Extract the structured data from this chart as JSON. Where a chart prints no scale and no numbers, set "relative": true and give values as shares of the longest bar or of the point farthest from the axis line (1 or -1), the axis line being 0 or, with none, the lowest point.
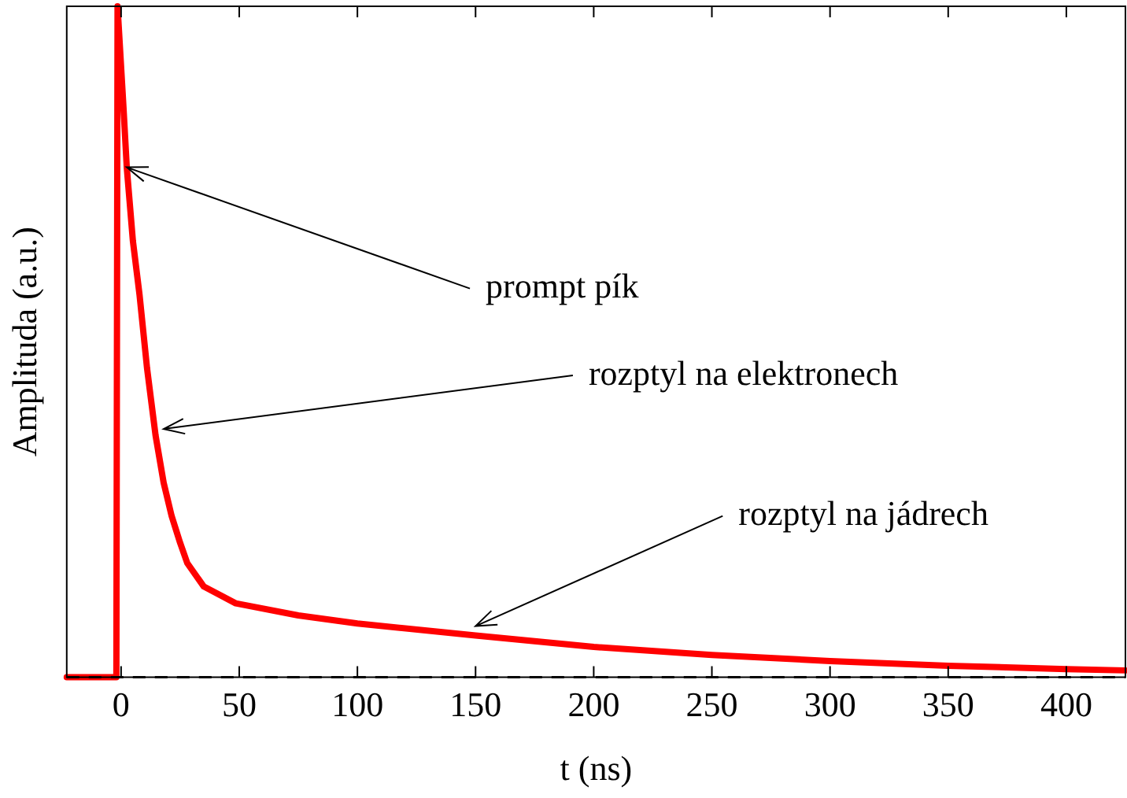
{
  "chart_data": {
    "type": "line",
    "xlabel": "t (ns)",
    "ylabel": "Amplituda (a.u.)",
    "relative": true,
    "x": [
      -23,
      -2,
      -1.5,
      1,
      2.4,
      5,
      7.8,
      11,
      14.6,
      18,
      21.4,
      25,
      28,
      35,
      48.5,
      75,
      100,
      150,
      200,
      250,
      300,
      350,
      400,
      425
    ],
    "series": [
      {
        "color": "#ff0000",
        "values": [
          0,
          0,
          1,
          0.85,
          0.76,
          0.65,
          0.57,
          0.46,
          0.36,
          0.29,
          0.24,
          0.2,
          0.17,
          0.135,
          0.11,
          0.092,
          0.08,
          0.062,
          0.045,
          0.033,
          0.024,
          0.017,
          0.012,
          0.01
        ]
      }
    ],
    "xlim": [
      -23,
      425
    ],
    "xticks": [
      0,
      50,
      100,
      150,
      200,
      250,
      300,
      350,
      400
    ],
    "ref_lines": [
      {
        "axis": "y",
        "value": 0,
        "color": "#000000",
        "line_style": "dashed"
      }
    ],
    "annotations": [
      {
        "text": "prompt pík",
        "x": 2.4,
        "y": 0.76
      },
      {
        "text": "rozptyl na elektronech",
        "x": 18,
        "y": 0.37
      },
      {
        "text": "rozptyl na jádrech",
        "x": 150,
        "y": 0.076
      }
    ],
    "grid": false,
    "legend": false,
    "marker": "none",
    "line_style": "solid"
  }
}
